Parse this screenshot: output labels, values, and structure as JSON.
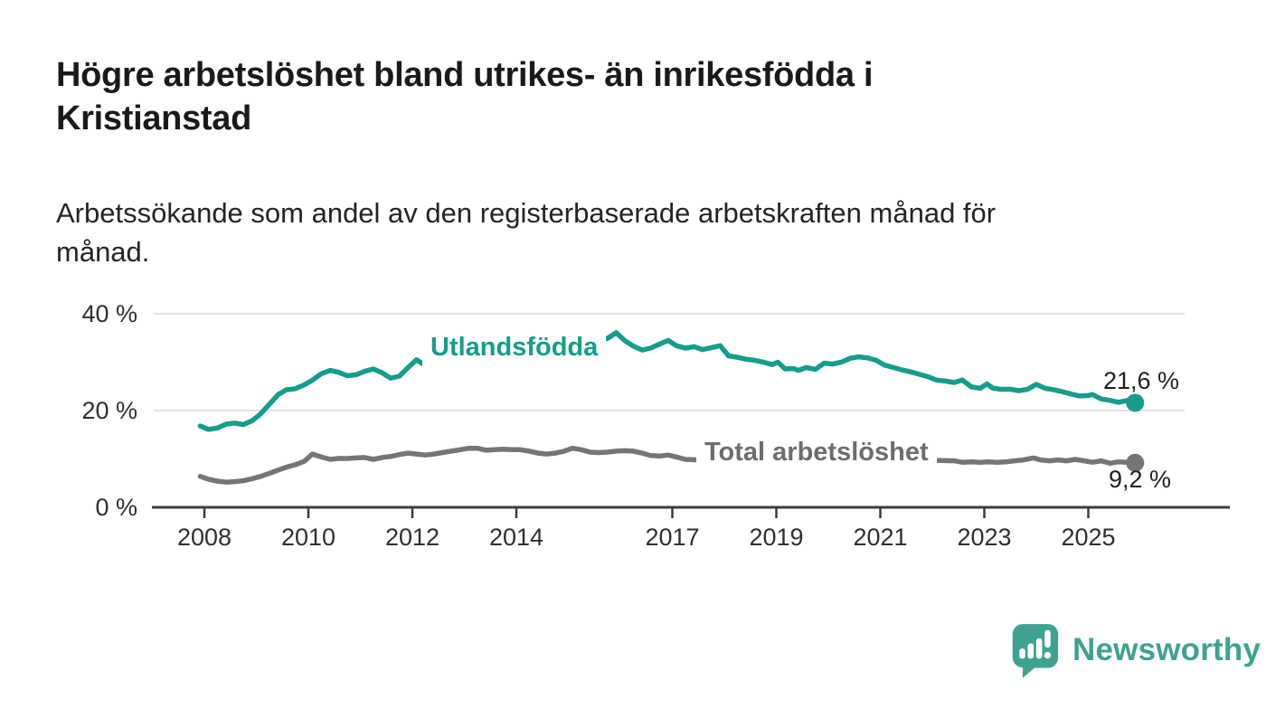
{
  "page": {
    "background_color": "#ffffff"
  },
  "header": {
    "title": "Högre arbetslöshet bland utrikes- än inrikesfödda i Kristianstad",
    "title_lines": [
      "Högre arbetslöshet bland utrikes- än inrikesfödda i",
      "Kristianstad"
    ],
    "subtitle": "Arbetssökande som andel av den registerbaserade arbetskraften månad för månad.",
    "subtitle_lines": [
      "Arbetssökande som andel av den registerbaserade arbetskraften månad för",
      "månad."
    ]
  },
  "chart_data": {
    "type": "line",
    "title": "Högre arbetslöshet bland utrikes- än inrikesfödda i Kristianstad",
    "subtitle": "Arbetssökande som andel av den registerbaserade arbetskraften månad för månad.",
    "unit": "%",
    "ylim": [
      0,
      42
    ],
    "grid": "horizontal",
    "legend_position": "inline-labels",
    "x_axis": {
      "ticks": [
        {
          "year": 2008,
          "label": "2008"
        },
        {
          "year": 2010,
          "label": "2010"
        },
        {
          "year": 2012,
          "label": "2012"
        },
        {
          "year": 2014,
          "label": "2014"
        },
        {
          "year": 2017,
          "label": "2017"
        },
        {
          "year": 2019,
          "label": "2019"
        },
        {
          "year": 2021,
          "label": "2021"
        },
        {
          "year": 2023,
          "label": "2023"
        },
        {
          "year": 2025,
          "label": "2025"
        }
      ]
    },
    "y_axis": {
      "ticks": [
        {
          "value": 0,
          "label": "0 %"
        },
        {
          "value": 20,
          "label": "20 %"
        },
        {
          "value": 40,
          "label": "40 %"
        }
      ]
    },
    "series": [
      {
        "name": "Utlandsfödda",
        "color": "#149d8b",
        "end_label": "21,6 %",
        "end_value": 21.6,
        "points": [
          [
            2007.92,
            16.8
          ],
          [
            2008.08,
            16.1
          ],
          [
            2008.25,
            16.4
          ],
          [
            2008.42,
            17.2
          ],
          [
            2008.58,
            17.4
          ],
          [
            2008.75,
            17.1
          ],
          [
            2008.92,
            17.9
          ],
          [
            2009.08,
            19.3
          ],
          [
            2009.25,
            21.3
          ],
          [
            2009.42,
            23.3
          ],
          [
            2009.58,
            24.3
          ],
          [
            2009.75,
            24.5
          ],
          [
            2009.92,
            25.3
          ],
          [
            2010.08,
            26.3
          ],
          [
            2010.25,
            27.6
          ],
          [
            2010.42,
            28.3
          ],
          [
            2010.58,
            27.9
          ],
          [
            2010.75,
            27.2
          ],
          [
            2010.92,
            27.4
          ],
          [
            2011.08,
            28.1
          ],
          [
            2011.25,
            28.6
          ],
          [
            2011.42,
            27.8
          ],
          [
            2011.58,
            26.7
          ],
          [
            2011.75,
            27.1
          ],
          [
            2011.92,
            28.9
          ],
          [
            2012.08,
            30.5
          ],
          [
            2012.25,
            29.3
          ],
          [
            2012.42,
            30.2
          ],
          [
            2012.75,
            30.4
          ],
          [
            2013.08,
            31.2
          ],
          [
            2013.42,
            31.6
          ],
          [
            2013.75,
            32.1
          ],
          [
            2014.08,
            32.6
          ],
          [
            2014.42,
            33.1
          ],
          [
            2014.75,
            33.6
          ],
          [
            2015.08,
            33.9
          ],
          [
            2015.42,
            34.3
          ],
          [
            2015.75,
            34.9
          ],
          [
            2015.92,
            36.1
          ],
          [
            2016.08,
            34.5
          ],
          [
            2016.25,
            33.3
          ],
          [
            2016.42,
            32.5
          ],
          [
            2016.58,
            32.9
          ],
          [
            2016.75,
            33.7
          ],
          [
            2016.92,
            34.5
          ],
          [
            2017.08,
            33.4
          ],
          [
            2017.25,
            32.9
          ],
          [
            2017.42,
            33.2
          ],
          [
            2017.58,
            32.6
          ],
          [
            2017.75,
            33.0
          ],
          [
            2017.92,
            33.4
          ],
          [
            2018.08,
            31.3
          ],
          [
            2018.25,
            31.0
          ],
          [
            2018.42,
            30.6
          ],
          [
            2018.58,
            30.4
          ],
          [
            2018.75,
            30.0
          ],
          [
            2018.92,
            29.5
          ],
          [
            2019.03,
            30.0
          ],
          [
            2019.17,
            28.6
          ],
          [
            2019.33,
            28.7
          ],
          [
            2019.42,
            28.3
          ],
          [
            2019.58,
            28.9
          ],
          [
            2019.75,
            28.5
          ],
          [
            2019.92,
            29.8
          ],
          [
            2020.08,
            29.6
          ],
          [
            2020.25,
            30.0
          ],
          [
            2020.42,
            30.8
          ],
          [
            2020.58,
            31.1
          ],
          [
            2020.75,
            30.9
          ],
          [
            2020.92,
            30.4
          ],
          [
            2021.08,
            29.4
          ],
          [
            2021.25,
            28.9
          ],
          [
            2021.42,
            28.4
          ],
          [
            2021.58,
            28.0
          ],
          [
            2021.75,
            27.5
          ],
          [
            2021.92,
            27.0
          ],
          [
            2022.08,
            26.3
          ],
          [
            2022.25,
            26.1
          ],
          [
            2022.42,
            25.8
          ],
          [
            2022.58,
            26.3
          ],
          [
            2022.75,
            24.9
          ],
          [
            2022.92,
            24.6
          ],
          [
            2023.05,
            25.5
          ],
          [
            2023.17,
            24.6
          ],
          [
            2023.33,
            24.4
          ],
          [
            2023.5,
            24.4
          ],
          [
            2023.67,
            24.1
          ],
          [
            2023.83,
            24.4
          ],
          [
            2024.0,
            25.4
          ],
          [
            2024.17,
            24.6
          ],
          [
            2024.33,
            24.3
          ],
          [
            2024.5,
            23.9
          ],
          [
            2024.67,
            23.4
          ],
          [
            2024.83,
            23.0
          ],
          [
            2025.0,
            23.1
          ],
          [
            2025.08,
            23.3
          ],
          [
            2025.25,
            22.4
          ],
          [
            2025.42,
            22.1
          ],
          [
            2025.58,
            21.7
          ],
          [
            2025.75,
            22.1
          ],
          [
            2025.9,
            21.6
          ]
        ]
      },
      {
        "name": "Total arbetslöshet",
        "color": "#757578",
        "end_label": "9,2 %",
        "end_value": 9.2,
        "points": [
          [
            2007.92,
            6.4
          ],
          [
            2008.08,
            5.8
          ],
          [
            2008.25,
            5.4
          ],
          [
            2008.42,
            5.2
          ],
          [
            2008.58,
            5.3
          ],
          [
            2008.75,
            5.5
          ],
          [
            2008.92,
            5.9
          ],
          [
            2009.08,
            6.4
          ],
          [
            2009.25,
            7.0
          ],
          [
            2009.42,
            7.7
          ],
          [
            2009.58,
            8.3
          ],
          [
            2009.75,
            8.8
          ],
          [
            2009.92,
            9.5
          ],
          [
            2010.08,
            11.0
          ],
          [
            2010.25,
            10.4
          ],
          [
            2010.42,
            9.9
          ],
          [
            2010.58,
            10.1
          ],
          [
            2010.75,
            10.1
          ],
          [
            2010.92,
            10.2
          ],
          [
            2011.08,
            10.3
          ],
          [
            2011.25,
            9.9
          ],
          [
            2011.42,
            10.3
          ],
          [
            2011.58,
            10.5
          ],
          [
            2011.75,
            10.9
          ],
          [
            2011.92,
            11.2
          ],
          [
            2012.08,
            11.0
          ],
          [
            2012.25,
            10.8
          ],
          [
            2012.42,
            11.0
          ],
          [
            2012.58,
            11.3
          ],
          [
            2012.75,
            11.6
          ],
          [
            2012.92,
            11.9
          ],
          [
            2013.08,
            12.2
          ],
          [
            2013.25,
            12.2
          ],
          [
            2013.42,
            11.8
          ],
          [
            2013.58,
            11.9
          ],
          [
            2013.75,
            12.0
          ],
          [
            2013.92,
            11.9
          ],
          [
            2014.08,
            11.9
          ],
          [
            2014.25,
            11.6
          ],
          [
            2014.42,
            11.2
          ],
          [
            2014.58,
            11.0
          ],
          [
            2014.75,
            11.2
          ],
          [
            2014.92,
            11.6
          ],
          [
            2015.08,
            12.2
          ],
          [
            2015.25,
            11.9
          ],
          [
            2015.42,
            11.4
          ],
          [
            2015.58,
            11.3
          ],
          [
            2015.75,
            11.4
          ],
          [
            2015.92,
            11.6
          ],
          [
            2016.08,
            11.7
          ],
          [
            2016.25,
            11.6
          ],
          [
            2016.42,
            11.2
          ],
          [
            2016.58,
            10.7
          ],
          [
            2016.75,
            10.6
          ],
          [
            2016.92,
            10.8
          ],
          [
            2017.08,
            10.4
          ],
          [
            2017.25,
            9.9
          ],
          [
            2017.5,
            9.8
          ],
          [
            2018.0,
            9.6
          ],
          [
            2018.5,
            9.5
          ],
          [
            2019.0,
            9.4
          ],
          [
            2019.5,
            9.6
          ],
          [
            2020.0,
            10.3
          ],
          [
            2020.42,
            10.8
          ],
          [
            2020.83,
            10.5
          ],
          [
            2021.25,
            10.1
          ],
          [
            2021.67,
            9.9
          ],
          [
            2022.08,
            9.7
          ],
          [
            2022.42,
            9.6
          ],
          [
            2022.58,
            9.3
          ],
          [
            2022.75,
            9.4
          ],
          [
            2022.92,
            9.3
          ],
          [
            2023.08,
            9.4
          ],
          [
            2023.25,
            9.3
          ],
          [
            2023.42,
            9.4
          ],
          [
            2023.58,
            9.6
          ],
          [
            2023.75,
            9.8
          ],
          [
            2023.95,
            10.2
          ],
          [
            2024.08,
            9.8
          ],
          [
            2024.25,
            9.6
          ],
          [
            2024.42,
            9.8
          ],
          [
            2024.58,
            9.6
          ],
          [
            2024.75,
            9.9
          ],
          [
            2024.92,
            9.6
          ],
          [
            2025.08,
            9.3
          ],
          [
            2025.25,
            9.6
          ],
          [
            2025.42,
            9.1
          ],
          [
            2025.58,
            9.4
          ],
          [
            2025.75,
            9.3
          ],
          [
            2025.9,
            9.2
          ]
        ]
      }
    ]
  },
  "branding": {
    "name": "Newsworthy",
    "logo_color": "#3fa291",
    "logo_icon": "bar-chart-speech-bubble"
  },
  "style_colors": {
    "accent_teal": "#149d8b",
    "line_gray": "#757578",
    "gridline": "#d8d8d8",
    "axis": "#3d3d3d",
    "text_dark": "#1a1a1a"
  }
}
